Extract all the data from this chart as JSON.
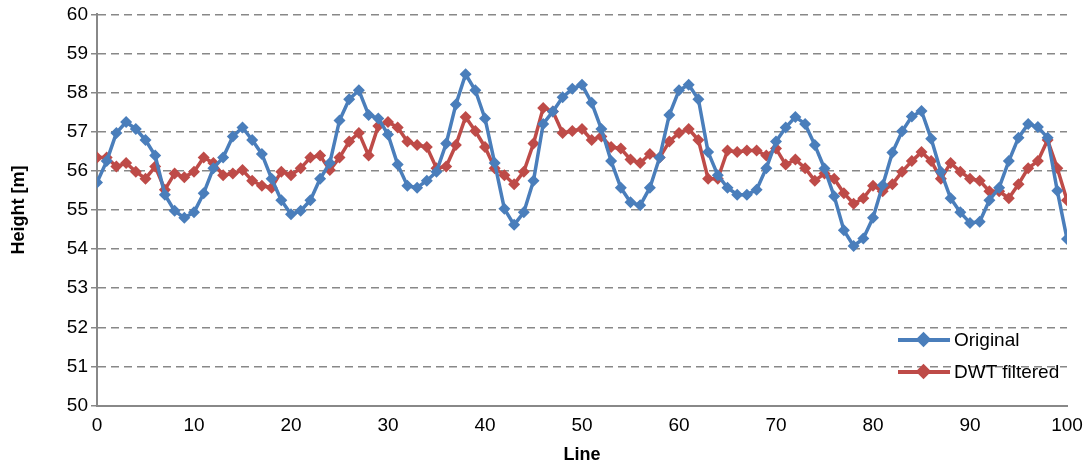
{
  "chart_data": {
    "type": "line",
    "xlabel": "Line",
    "ylabel": "Height [m]",
    "x": [
      0,
      1,
      2,
      3,
      4,
      5,
      6,
      7,
      8,
      9,
      10,
      11,
      12,
      13,
      14,
      15,
      16,
      17,
      18,
      19,
      20,
      21,
      22,
      23,
      24,
      25,
      26,
      27,
      28,
      29,
      30,
      31,
      32,
      33,
      34,
      35,
      36,
      37,
      38,
      39,
      40,
      41,
      42,
      43,
      44,
      45,
      46,
      47,
      48,
      49,
      50,
      51,
      52,
      53,
      54,
      55,
      56,
      57,
      58,
      59,
      60,
      61,
      62,
      63,
      64,
      65,
      66,
      67,
      68,
      69,
      70,
      71,
      72,
      73,
      74,
      75,
      76,
      77,
      78,
      79,
      80,
      81,
      82,
      83,
      84,
      85,
      86,
      87,
      88,
      89,
      90,
      91,
      92,
      93,
      94,
      95,
      96,
      97,
      98,
      99,
      100
    ],
    "series": [
      {
        "name": "Original",
        "color": "#4a7ebb",
        "values": [
          55.7,
          56.25,
          56.97,
          57.25,
          57.07,
          56.79,
          56.39,
          55.39,
          54.98,
          54.8,
          54.94,
          55.43,
          56.07,
          56.34,
          56.88,
          57.11,
          56.79,
          56.43,
          55.8,
          55.25,
          54.89,
          54.98,
          55.25,
          55.8,
          56.2,
          57.29,
          57.83,
          58.06,
          57.43,
          57.34,
          56.93,
          56.16,
          55.62,
          55.57,
          55.75,
          55.98,
          56.7,
          57.7,
          58.47,
          58.06,
          57.34,
          56.2,
          55.03,
          54.62,
          54.94,
          55.75,
          57.2,
          57.52,
          57.88,
          58.1,
          58.2,
          57.74,
          57.07,
          56.25,
          55.57,
          55.2,
          55.12,
          55.57,
          56.34,
          57.43,
          58.06,
          58.2,
          57.83,
          56.48,
          55.89,
          55.57,
          55.39,
          55.39,
          55.52,
          56.07,
          56.75,
          57.11,
          57.38,
          57.2,
          56.66,
          56.06,
          55.35,
          54.48,
          54.08,
          54.27,
          54.8,
          55.63,
          56.47,
          57.01,
          57.39,
          57.53,
          56.82,
          55.98,
          55.3,
          54.94,
          54.67,
          54.7,
          55.25,
          55.57,
          56.25,
          56.85,
          57.2,
          57.12,
          56.85,
          55.49,
          54.26
        ]
      },
      {
        "name": "DWT filtered",
        "color": "#be4b48",
        "values": [
          56.34,
          56.34,
          56.11,
          56.2,
          55.98,
          55.8,
          56.11,
          55.52,
          55.93,
          55.84,
          55.98,
          56.34,
          56.2,
          55.89,
          55.93,
          56.02,
          55.75,
          55.62,
          55.57,
          55.98,
          55.89,
          56.07,
          56.34,
          56.39,
          56.02,
          56.34,
          56.75,
          56.97,
          56.39,
          57.15,
          57.25,
          57.11,
          56.75,
          56.66,
          56.61,
          56.07,
          56.11,
          56.66,
          57.38,
          57.02,
          56.61,
          56.07,
          55.89,
          55.66,
          55.98,
          56.7,
          57.61,
          57.52,
          56.97,
          57.02,
          57.07,
          56.79,
          56.88,
          56.61,
          56.57,
          56.29,
          56.2,
          56.43,
          56.34,
          56.75,
          56.97,
          57.07,
          56.79,
          55.8,
          55.8,
          56.52,
          56.48,
          56.52,
          56.52,
          56.39,
          56.57,
          56.16,
          56.29,
          56.07,
          55.75,
          55.93,
          55.8,
          55.43,
          55.16,
          55.3,
          55.62,
          55.48,
          55.66,
          55.98,
          56.25,
          56.48,
          56.25,
          55.8,
          56.2,
          55.98,
          55.8,
          55.75,
          55.48,
          55.48,
          55.3,
          55.66,
          56.07,
          56.25,
          56.79,
          56.07,
          55.25
        ]
      }
    ],
    "xlim": [
      0,
      100
    ],
    "xticks": [
      0,
      10,
      20,
      30,
      40,
      50,
      60,
      70,
      80,
      90,
      100
    ],
    "ylim": [
      50,
      60
    ],
    "yticks": [
      50,
      51,
      52,
      53,
      54,
      55,
      56,
      57,
      58,
      59,
      60
    ],
    "grid": "y",
    "legend": "bottom right",
    "marker": "diamond",
    "line_style": "solid"
  }
}
